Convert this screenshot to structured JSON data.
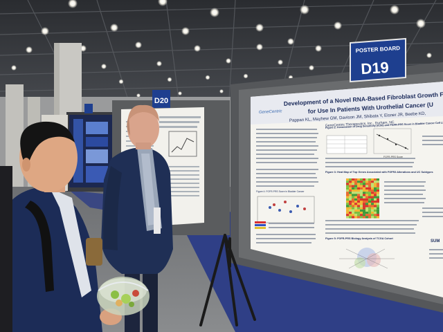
{
  "sign_main": {
    "line1": "POSTER BOARD",
    "line2": "D19"
  },
  "sign_secondary": {
    "label": "D20"
  },
  "poster_main": {
    "title_line1": "Development of a Novel RNA-Based Fibroblast Growth Factor Receptor R",
    "title_line2": "for Use In Patients With Urothelial Cancer (U",
    "authors": "Pappan KL, Mayhew GM, Davison JM, Shibata Y, Eisner JR, Beebe KD,",
    "affiliation": "GeneCentric Therapeutics, Inc., Durham, NC",
    "logo_text": "GeneCentric",
    "figure2_title": "Figure 2: Association of Drug Sensitivity (IC50) and FGFR-PRS Score in Bladder Cancer Cell Lines Treated with FGFR Inhibitory Agents",
    "figure3_title": "Figure 3: Heat Map of Top Genes Associated with FGFR3 Alterations and UC Subtypes",
    "figure4_title": "Figure 4: FGFR-PRS Score in Bladder Cancer",
    "figure5_title": "Figure 5: FGFR-PRS Biology Analysis of TCGA Cohort",
    "axis_label": "FGFR-PRS Score",
    "summary_label": "SUM"
  },
  "colors": {
    "ceiling": "#3a3d42",
    "carpet": "#2f3f86",
    "sign_blue": "#1e3f8f",
    "jacket_navy": "#1f2f55",
    "board_gray": "#5a5c5e"
  }
}
